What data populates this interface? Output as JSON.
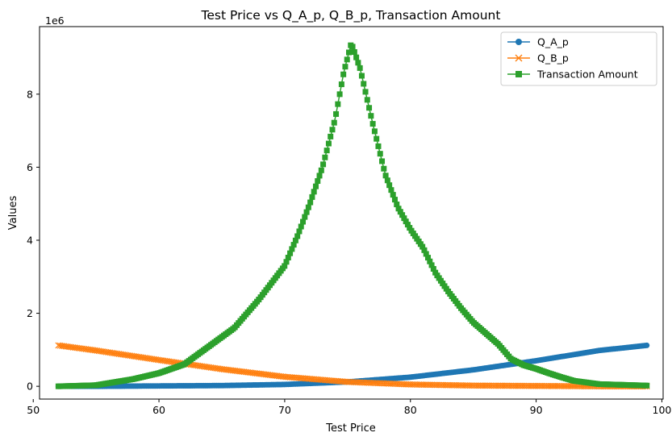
{
  "chart_data": {
    "type": "line",
    "title": "Test Price vs Q_A_p, Q_B_p, Transaction Amount",
    "xlabel": "Test Price",
    "ylabel": "Values",
    "y_offset_label": "1e6",
    "xlim": [
      50.5,
      100.1
    ],
    "ylim": [
      -0.35,
      9.85
    ],
    "x_ticks": [
      50,
      60,
      70,
      80,
      90,
      100
    ],
    "y_ticks": [
      0,
      2,
      4,
      6,
      8
    ],
    "legend_position": "top-right",
    "grid": false,
    "x_range": [
      52,
      98.8
    ],
    "series": [
      {
        "name": "Q_A_p",
        "color": "#1f77b4",
        "marker": "circle",
        "points": [
          [
            52,
            0.0
          ],
          [
            55,
            0.0
          ],
          [
            60,
            0.01
          ],
          [
            65,
            0.02
          ],
          [
            70,
            0.05
          ],
          [
            75,
            0.12
          ],
          [
            80,
            0.25
          ],
          [
            85,
            0.45
          ],
          [
            90,
            0.7
          ],
          [
            95,
            0.98
          ],
          [
            98.8,
            1.12
          ]
        ]
      },
      {
        "name": "Q_B_p",
        "color": "#ff7f0e",
        "marker": "x",
        "points": [
          [
            52,
            1.12
          ],
          [
            55,
            0.98
          ],
          [
            60,
            0.72
          ],
          [
            65,
            0.47
          ],
          [
            70,
            0.26
          ],
          [
            75,
            0.12
          ],
          [
            80,
            0.05
          ],
          [
            85,
            0.02
          ],
          [
            90,
            0.01
          ],
          [
            95,
            0.0
          ],
          [
            98.8,
            0.0
          ]
        ]
      },
      {
        "name": "Transaction Amount",
        "color": "#2ca02c",
        "marker": "square",
        "points": [
          [
            52,
            0.0
          ],
          [
            55,
            0.03
          ],
          [
            58,
            0.2
          ],
          [
            60,
            0.36
          ],
          [
            62,
            0.6
          ],
          [
            64,
            1.1
          ],
          [
            66,
            1.6
          ],
          [
            68,
            2.4
          ],
          [
            70,
            3.3
          ],
          [
            71,
            4.1
          ],
          [
            72,
            5.0
          ],
          [
            73,
            6.0
          ],
          [
            74,
            7.3
          ],
          [
            74.7,
            8.6
          ],
          [
            75.3,
            9.4
          ],
          [
            76,
            8.7
          ],
          [
            77,
            7.2
          ],
          [
            78,
            5.8
          ],
          [
            79,
            4.9
          ],
          [
            80,
            4.3
          ],
          [
            81,
            3.8
          ],
          [
            82,
            3.1
          ],
          [
            83,
            2.6
          ],
          [
            84,
            2.15
          ],
          [
            85,
            1.75
          ],
          [
            86,
            1.45
          ],
          [
            87,
            1.15
          ],
          [
            88,
            0.75
          ],
          [
            89,
            0.58
          ],
          [
            90,
            0.48
          ],
          [
            91,
            0.36
          ],
          [
            92,
            0.25
          ],
          [
            93,
            0.15
          ],
          [
            95,
            0.06
          ],
          [
            98.8,
            0.02
          ]
        ]
      }
    ]
  }
}
